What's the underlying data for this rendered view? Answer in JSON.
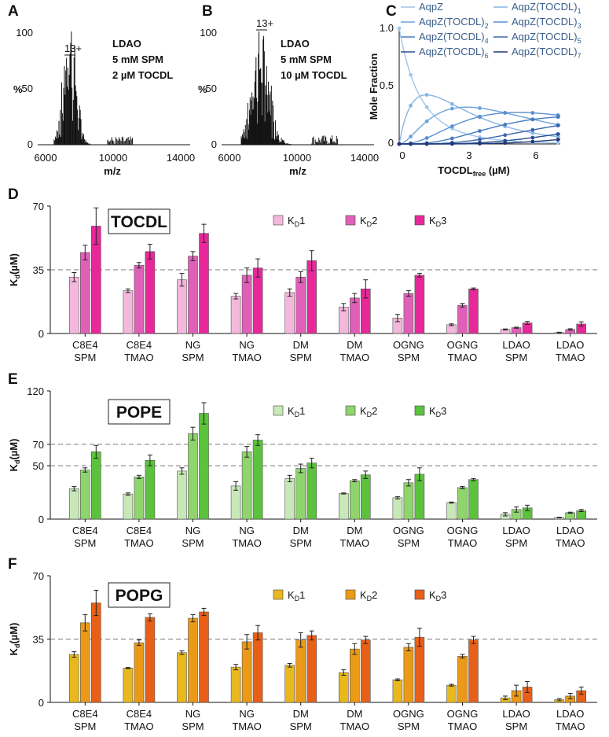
{
  "panelA": {
    "label": "A",
    "ylabel": "%",
    "xlabel": "m/z",
    "yticks": [
      "100",
      "50",
      "0"
    ],
    "xticks": [
      6000,
      10000,
      14000
    ],
    "xlim": [
      5500,
      14800
    ],
    "peak_label": "13+",
    "annotation": [
      "LDAO",
      "5 mM SPM",
      "2 µM TOCDL"
    ],
    "color": "#111111",
    "spectrum": {
      "center": 7450,
      "width": 560,
      "start": 6500,
      "end": 9700,
      "spacing": 42,
      "max_at": 7060,
      "tail": 0.06
    }
  },
  "panelB": {
    "label": "B",
    "ylabel": "%",
    "xlabel": "m/z",
    "yticks": [
      "100",
      "50",
      "0"
    ],
    "xticks": [
      6000,
      10000,
      14000
    ],
    "xlim": [
      5500,
      14800
    ],
    "peak_label": "13+",
    "annotation": [
      "LDAO",
      "5 mM SPM",
      "10 µM TOCDL"
    ],
    "color": "#111111",
    "spectrum": {
      "center": 7900,
      "width": 800,
      "start": 6700,
      "end": 11000,
      "spacing": 36,
      "max_at": 7700,
      "tail": 0.08
    }
  },
  "panelC": {
    "label": "C",
    "ylabel": "Mole Fraction",
    "xlabel_main": "TOCDL",
    "xlabel_sub": "free",
    "xlabel_unit": " (µM)",
    "xticks": [
      "0",
      "3",
      "6"
    ],
    "yticks": [
      "1.0",
      "0.5",
      "0"
    ],
    "xlim": [
      0,
      7
    ],
    "ylim": [
      0,
      1
    ],
    "legend": [
      {
        "main": "AqpZ",
        "sub": ""
      },
      {
        "main": "AqpZ(TOCDL)",
        "sub": "1"
      },
      {
        "main": "AqpZ(TOCDL)",
        "sub": "2"
      },
      {
        "main": "AqpZ(TOCDL)",
        "sub": "3"
      },
      {
        "main": "AqpZ(TOCDL)",
        "sub": "4"
      },
      {
        "main": "AqpZ(TOCDL)",
        "sub": "5"
      },
      {
        "main": "AqpZ(TOCDL)",
        "sub": "6"
      },
      {
        "main": "AqpZ(TOCDL)",
        "sub": "7"
      }
    ],
    "series_colors": [
      "#9fc6ea",
      "#86b5e3",
      "#6ea3da",
      "#5a90cf",
      "#4a7cc1",
      "#3b66ad",
      "#2c4f92",
      "#1e3876"
    ],
    "kd": [
      0.9,
      2.6,
      4.6
    ],
    "points_x": [
      0,
      0.5,
      1.2,
      2.3,
      3.5,
      4.6,
      5.8,
      6.9
    ]
  },
  "chart_data": [
    {
      "panel": "D",
      "type": "bar",
      "box_label": "TOCDL",
      "ylabel": "K",
      "ylabel_sub": "d",
      "ylabel_unit": "(µM)",
      "ylim": [
        0,
        70
      ],
      "yticks": [
        "0",
        "35",
        "70"
      ],
      "dashed_lines": [
        35
      ],
      "categories": [
        [
          "C8E4",
          "SPM"
        ],
        [
          "C8E4",
          "TMAO"
        ],
        [
          "NG",
          "SPM"
        ],
        [
          "NG",
          "TMAO"
        ],
        [
          "DM",
          "SPM"
        ],
        [
          "DM",
          "TMAO"
        ],
        [
          "OGNG",
          "SPM"
        ],
        [
          "OGNG",
          "TMAO"
        ],
        [
          "LDAO",
          "SPM"
        ],
        [
          "LDAO",
          "TMAO"
        ]
      ],
      "series": [
        {
          "name": "K",
          "sub": "D",
          "num": "1",
          "color": "#f4b8dc",
          "values": [
            31,
            23.5,
            29.5,
            20.5,
            22.5,
            14.5,
            8.5,
            4.8,
            2.2,
            0.5
          ],
          "errors": [
            2.5,
            1,
            3.5,
            1.5,
            2,
            2,
            2,
            0.5,
            0.3,
            0.2
          ]
        },
        {
          "name": "K",
          "sub": "D",
          "num": "2",
          "color": "#e060b8",
          "values": [
            44.5,
            37.5,
            42.5,
            32,
            31,
            19.5,
            22,
            15.5,
            3.2,
            2.2
          ],
          "errors": [
            4,
            1.5,
            2.5,
            4,
            3,
            2.5,
            1.5,
            1,
            0.3,
            0.4
          ]
        },
        {
          "name": "K",
          "sub": "D",
          "num": "3",
          "color": "#e8289a",
          "values": [
            59,
            45,
            55,
            36,
            40,
            24.5,
            32,
            24.5,
            5.8,
            5.2
          ],
          "errors": [
            10,
            4,
            5,
            5,
            5.5,
            5,
            1,
            0.5,
            0.8,
            1.2
          ]
        }
      ]
    },
    {
      "panel": "E",
      "type": "bar",
      "box_label": "POPE",
      "ylabel": "K",
      "ylabel_sub": "d",
      "ylabel_unit": "(µM)",
      "ylim": [
        0,
        120
      ],
      "yticks": [
        "0",
        "50",
        "70",
        "120"
      ],
      "dashed_lines": [
        50,
        70
      ],
      "categories": [
        [
          "C8E4",
          "SPM"
        ],
        [
          "C8E4",
          "TMAO"
        ],
        [
          "NG",
          "SPM"
        ],
        [
          "NG",
          "TMAO"
        ],
        [
          "DM",
          "SPM"
        ],
        [
          "DM",
          "TMAO"
        ],
        [
          "OGNG",
          "SPM"
        ],
        [
          "OGNG",
          "TMAO"
        ],
        [
          "LDAO",
          "SPM"
        ],
        [
          "LDAO",
          "TMAO"
        ]
      ],
      "series": [
        {
          "name": "K",
          "sub": "D",
          "num": "1",
          "color": "#c8e8b8",
          "values": [
            28.5,
            23.5,
            45,
            31,
            38,
            24,
            20,
            15.5,
            4.5,
            1.5
          ],
          "errors": [
            2,
            1,
            3,
            4,
            3,
            0.5,
            1,
            0.5,
            1.5,
            0.3
          ]
        },
        {
          "name": "K",
          "sub": "D",
          "num": "2",
          "color": "#8fd46c",
          "values": [
            46,
            39.5,
            80,
            63,
            47.5,
            36,
            34,
            29.5,
            9,
            6
          ],
          "errors": [
            2,
            1.5,
            6,
            5,
            4,
            1,
            3,
            1,
            2.5,
            0.5
          ]
        },
        {
          "name": "K",
          "sub": "D",
          "num": "3",
          "color": "#5bc23c",
          "values": [
            63,
            55,
            99,
            74,
            52.5,
            41.5,
            42,
            37,
            10.5,
            8
          ],
          "errors": [
            6,
            5,
            10,
            5,
            4.5,
            3.5,
            6,
            1,
            2.5,
            1
          ]
        }
      ]
    },
    {
      "panel": "F",
      "type": "bar",
      "box_label": "POPG",
      "ylabel": "K",
      "ylabel_sub": "d",
      "ylabel_unit": "(µM)",
      "ylim": [
        0,
        70
      ],
      "yticks": [
        "0",
        "35",
        "70"
      ],
      "dashed_lines": [
        35
      ],
      "categories": [
        [
          "C8E4",
          "SPM"
        ],
        [
          "C8E4",
          "TMAO"
        ],
        [
          "NG",
          "SPM"
        ],
        [
          "NG",
          "TMAO"
        ],
        [
          "DM",
          "SPM"
        ],
        [
          "DM",
          "TMAO"
        ],
        [
          "OGNG",
          "SPM"
        ],
        [
          "OGNG",
          "TMAO"
        ],
        [
          "LDAO",
          "SPM"
        ],
        [
          "LDAO",
          "TMAO"
        ]
      ],
      "series": [
        {
          "name": "K",
          "sub": "D",
          "num": "1",
          "color": "#e8b81c",
          "values": [
            26.5,
            19,
            27.5,
            19.5,
            20.5,
            16.5,
            12.5,
            9.5,
            2.5,
            1.5
          ],
          "errors": [
            1.5,
            0.3,
            1,
            1.5,
            1,
            1.5,
            0.5,
            0.5,
            1,
            0.6
          ]
        },
        {
          "name": "K",
          "sub": "D",
          "num": "2",
          "color": "#eb9a18",
          "values": [
            44,
            33,
            46.5,
            33.5,
            34.5,
            29.5,
            30.5,
            25.5,
            6.5,
            3.5
          ],
          "errors": [
            4.5,
            1.5,
            2,
            4,
            4,
            3,
            2,
            1,
            3,
            1.5
          ]
        },
        {
          "name": "K",
          "sub": "D",
          "num": "3",
          "color": "#e86018",
          "values": [
            55,
            47,
            50,
            38.5,
            37,
            34.5,
            36,
            34.5,
            8.5,
            6.5
          ],
          "errors": [
            7,
            2,
            2,
            4,
            2.5,
            2,
            5,
            2,
            3,
            2
          ]
        }
      ]
    }
  ]
}
